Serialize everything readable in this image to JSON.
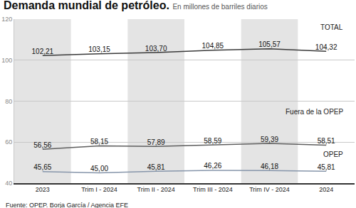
{
  "chart_data": {
    "type": "line",
    "title": "Demanda mundial de petróleo.",
    "subtitle": "En millones de barriles diarios",
    "source": "Fuente: OPEP. Borja García / Agencia EFE",
    "categories": [
      "2023",
      "Trim I - 2024",
      "Trim II - 2024",
      "Trim III - 2024",
      "Trim IV - 2024",
      "2024"
    ],
    "series": [
      {
        "name": "TOTAL",
        "color": "#3a3a3a",
        "values": [
          102.21,
          103.15,
          103.7,
          104.85,
          105.57,
          104.32
        ],
        "value_labels": [
          "102,21",
          "103,15",
          "103,70",
          "104,85",
          "105,57",
          "104,32"
        ]
      },
      {
        "name": "Fuera de la OPEP",
        "color": "#5e5e5e",
        "values": [
          56.56,
          58.15,
          57.89,
          58.59,
          59.39,
          58.51
        ],
        "value_labels": [
          "56,56",
          "58,15",
          "57,89",
          "58,59",
          "59,39",
          "58,51"
        ]
      },
      {
        "name": "OPEP",
        "color": "#8796ab",
        "values": [
          45.65,
          45.0,
          45.81,
          46.26,
          46.18,
          45.81
        ],
        "value_labels": [
          "45,65",
          "45,00",
          "45,81",
          "46,26",
          "46,18",
          "45,81"
        ]
      }
    ],
    "ylim": [
      40,
      120
    ],
    "yticks": [
      40,
      60,
      80,
      100,
      120
    ],
    "grid": true,
    "data_labels": true
  }
}
